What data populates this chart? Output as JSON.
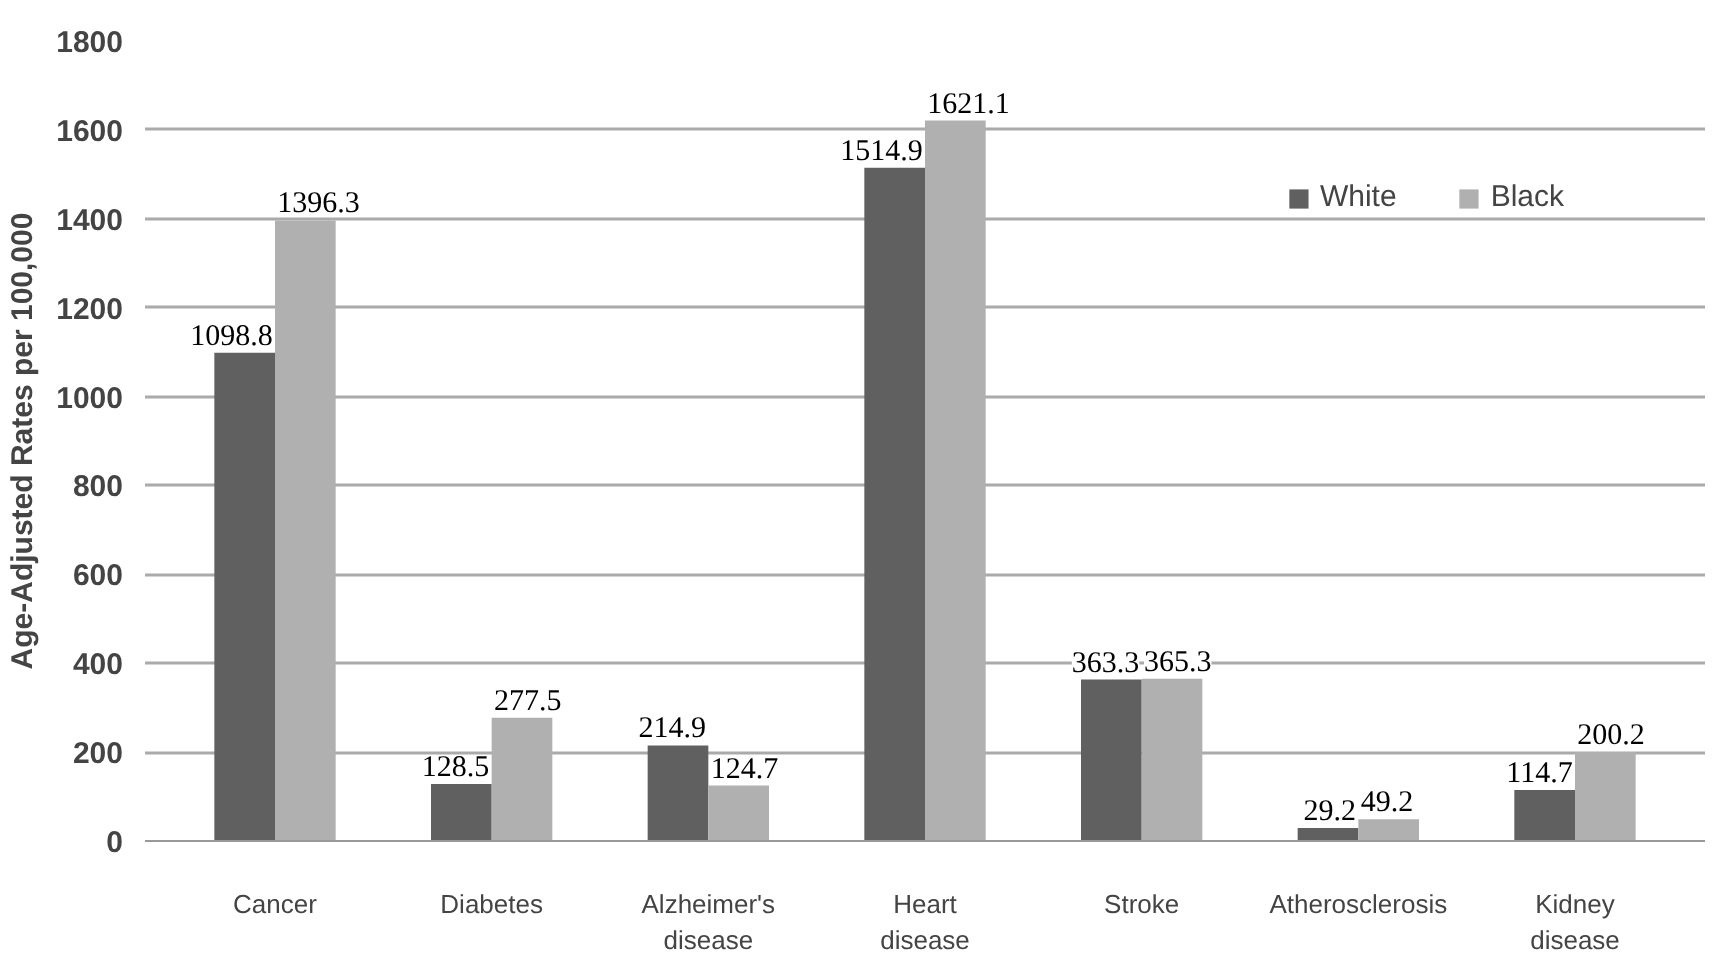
{
  "chart_data": {
    "type": "bar",
    "ylabel": "Age-Adjusted Rates per 100,000",
    "categories": [
      "Cancer",
      "Diabetes",
      "Alzheimer's disease",
      "Heart disease",
      "Stroke",
      "Atherosclerosis",
      "Kidney disease"
    ],
    "series": [
      {
        "name": "White",
        "color": "#606060",
        "values": [
          1098.8,
          128.5,
          214.9,
          1514.9,
          363.3,
          29.2,
          114.7
        ]
      },
      {
        "name": "Black",
        "color": "#b0b0b0",
        "values": [
          1396.3,
          277.5,
          124.7,
          1621.1,
          365.3,
          49.2,
          200.2
        ]
      }
    ],
    "ylim": [
      0,
      1800
    ],
    "yticks": [
      0,
      200,
      400,
      600,
      800,
      1000,
      1200,
      1400,
      1600,
      1800
    ],
    "grid": "y",
    "legend": "top right",
    "data_labels": true
  }
}
